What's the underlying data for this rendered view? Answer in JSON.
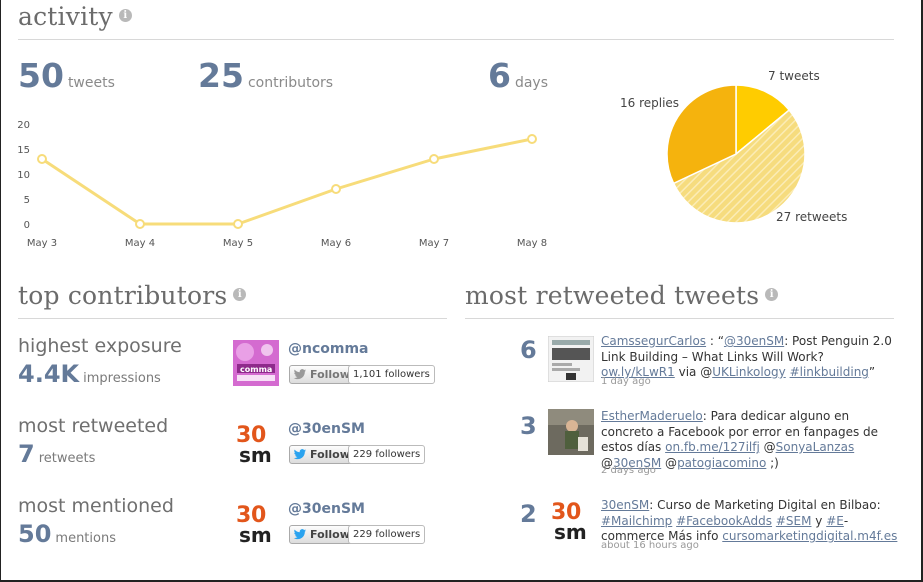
{
  "activity": {
    "title": "activity",
    "info_icon": "i",
    "stats": [
      {
        "value": "50",
        "label": "tweets"
      },
      {
        "value": "25",
        "label": "contributors"
      },
      {
        "value": "6",
        "label": "days"
      }
    ]
  },
  "chart_data": [
    {
      "type": "line",
      "x": [
        "May 3",
        "May 4",
        "May 5",
        "May 6",
        "May 7",
        "May 8"
      ],
      "series": [
        {
          "values": [
            13,
            0,
            0,
            7,
            13,
            17
          ]
        }
      ],
      "yticks": [
        "20",
        "15",
        "10",
        "5",
        "0"
      ],
      "ylim": [
        0,
        20
      ],
      "grid": false,
      "line_color": "#f7dc7a"
    },
    {
      "type": "pie",
      "slices": [
        {
          "label": "7 tweets",
          "value": 7,
          "color": "#ffcc00"
        },
        {
          "label": "27 retweets",
          "value": 27,
          "color": "#f6dc7e"
        },
        {
          "label": "16 replies",
          "value": 16,
          "color": "#f5b30d"
        }
      ]
    }
  ],
  "top_contributors": {
    "title": "top contributors",
    "info_icon": "i",
    "rows": [
      {
        "label": "highest exposure",
        "value": "4.4K",
        "unit": "impressions",
        "handle": "ncomma",
        "follow": "Follow",
        "followers": "1,101 followers",
        "avatar": "ncomma-avatar"
      },
      {
        "label": "most retweeted",
        "value": "7",
        "unit": "retweets",
        "handle": "30enSM",
        "follow": "Follow",
        "followers": "229 followers",
        "avatar": "30ensm-avatar"
      },
      {
        "label": "most mentioned",
        "value": "50",
        "unit": "mentions",
        "handle": "30enSM",
        "follow": "Follow",
        "followers": "229 followers",
        "avatar": "30ensm-avatar"
      }
    ]
  },
  "most_retweeted": {
    "title": "most retweeted tweets",
    "info_icon": "i",
    "tweets": [
      {
        "count": "6",
        "user": "CamssegurCarlos",
        "text_a": " : “",
        "mention1": "@30enSM",
        "text_b": ": Post Penguin 2.0 Link Building – What Links Will Work? ",
        "link1": "ow.ly/kLwR1",
        "text_c": " via @",
        "mention2": "UKLinkology",
        "text_d": " ",
        "hashtag1": "#linkbuilding",
        "text_e": "”",
        "time": "1 day ago"
      },
      {
        "count": "3",
        "user": "EstherMaderuelo",
        "text_a": ": Para dedicar alguno en concreto a Facebook por error en fanpages de estos días ",
        "link1": "on.fb.me/127ilfj",
        "text_b": " @",
        "mention1": "SonyaLanzas",
        "text_c": " @",
        "mention2": "30enSM",
        "text_d": " @",
        "mention3": "patogiacomino",
        "text_e": " ;)",
        "time": "2 days ago"
      },
      {
        "count": "2",
        "user": "30enSM",
        "text_a": ": Curso de Marketing Digital en Bilbao: ",
        "hashtag1": "#Mailchimp",
        "text_b": " ",
        "hashtag2": "#FacebookAdds",
        "text_c": " ",
        "hashtag3": "#SEM",
        "text_d": " y ",
        "hashtag4": "#E",
        "text_e": "-commerce Más info ",
        "link1": "cursomarketingdigital.m4f.es",
        "time": "about 16 hours ago"
      }
    ]
  }
}
